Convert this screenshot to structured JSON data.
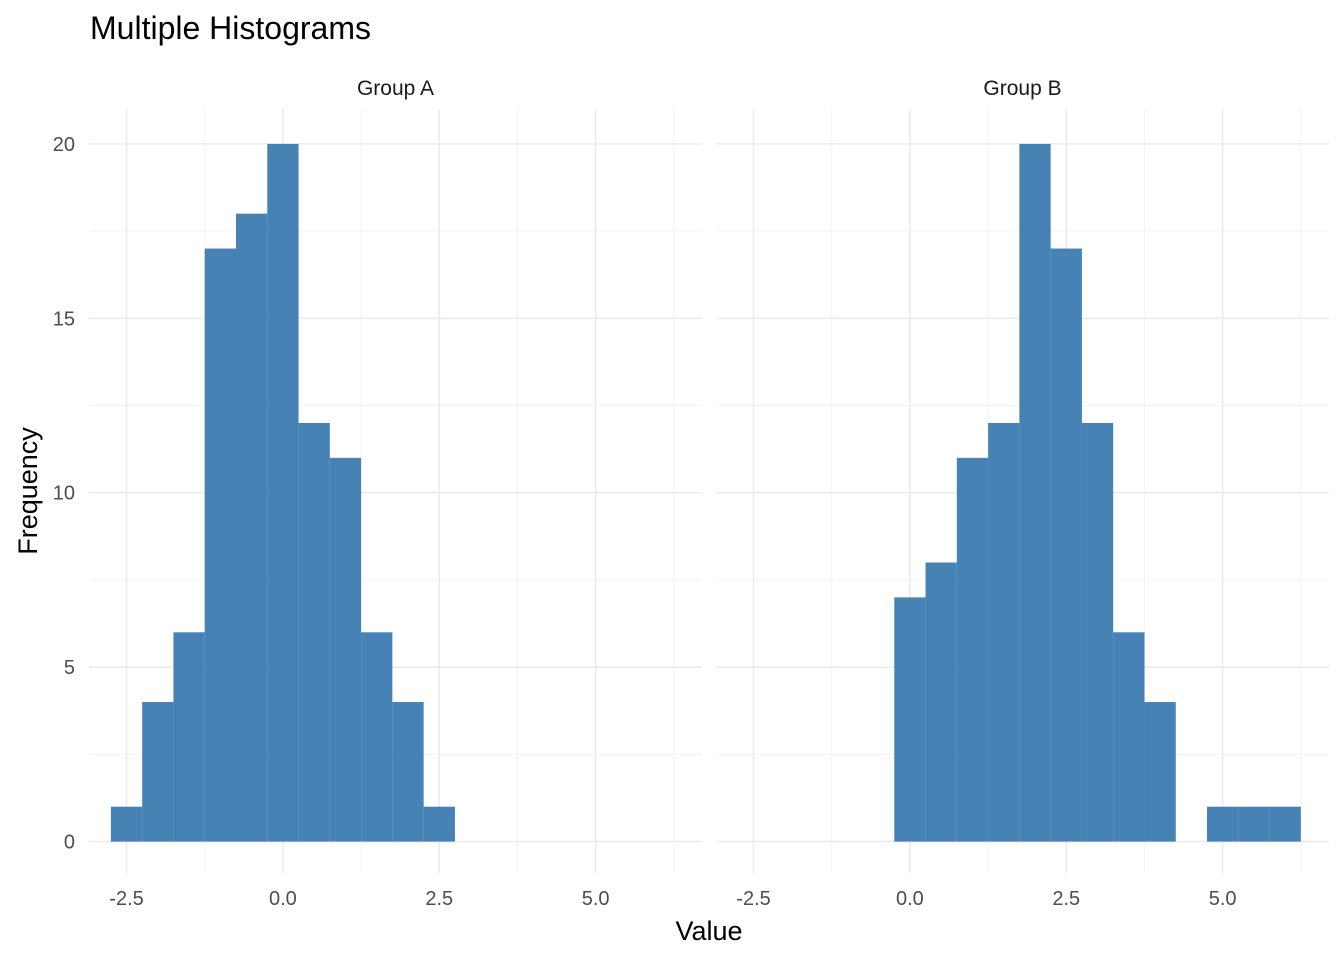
{
  "title": "Multiple Histograms",
  "chart_data": {
    "type": "bar",
    "subtype": "histogram-facets",
    "title": "Multiple Histograms",
    "xlabel": "Value",
    "ylabel": "Frequency",
    "xlim": [
      -3.1,
      6.7
    ],
    "ylim": [
      -0.9,
      21
    ],
    "x_ticks": [
      -2.5,
      0.0,
      2.5,
      5.0
    ],
    "x_tick_labels": [
      "-2.5",
      "0.0",
      "2.5",
      "5.0"
    ],
    "y_ticks": [
      0,
      5,
      10,
      15,
      20
    ],
    "y_tick_labels": [
      "0",
      "5",
      "10",
      "15",
      "20"
    ],
    "grid": true,
    "bar_color": "#4682B4",
    "bin_width": 0.5,
    "panels": [
      {
        "label": "Group A",
        "bins": [
          {
            "x0": -2.75,
            "x1": -2.25,
            "count": 1
          },
          {
            "x0": -2.25,
            "x1": -1.75,
            "count": 4
          },
          {
            "x0": -1.75,
            "x1": -1.25,
            "count": 6
          },
          {
            "x0": -1.25,
            "x1": -0.75,
            "count": 17
          },
          {
            "x0": -0.75,
            "x1": -0.25,
            "count": 18
          },
          {
            "x0": -0.25,
            "x1": 0.25,
            "count": 20
          },
          {
            "x0": 0.25,
            "x1": 0.75,
            "count": 12
          },
          {
            "x0": 0.75,
            "x1": 1.25,
            "count": 11
          },
          {
            "x0": 1.25,
            "x1": 1.75,
            "count": 6
          },
          {
            "x0": 1.75,
            "x1": 2.25,
            "count": 4
          },
          {
            "x0": 2.25,
            "x1": 2.75,
            "count": 1
          }
        ]
      },
      {
        "label": "Group B",
        "bins": [
          {
            "x0": -0.25,
            "x1": 0.25,
            "count": 7
          },
          {
            "x0": 0.25,
            "x1": 0.75,
            "count": 8
          },
          {
            "x0": 0.75,
            "x1": 1.25,
            "count": 11
          },
          {
            "x0": 1.25,
            "x1": 1.75,
            "count": 12
          },
          {
            "x0": 1.75,
            "x1": 2.25,
            "count": 20
          },
          {
            "x0": 2.25,
            "x1": 2.75,
            "count": 17
          },
          {
            "x0": 2.75,
            "x1": 3.25,
            "count": 12
          },
          {
            "x0": 3.25,
            "x1": 3.75,
            "count": 6
          },
          {
            "x0": 3.75,
            "x1": 4.25,
            "count": 4
          },
          {
            "x0": 4.25,
            "x1": 4.75,
            "count": 0
          },
          {
            "x0": 4.75,
            "x1": 5.25,
            "count": 1
          },
          {
            "x0": 5.25,
            "x1": 5.75,
            "count": 1
          },
          {
            "x0": 5.75,
            "x1": 6.25,
            "count": 1
          }
        ]
      }
    ]
  }
}
